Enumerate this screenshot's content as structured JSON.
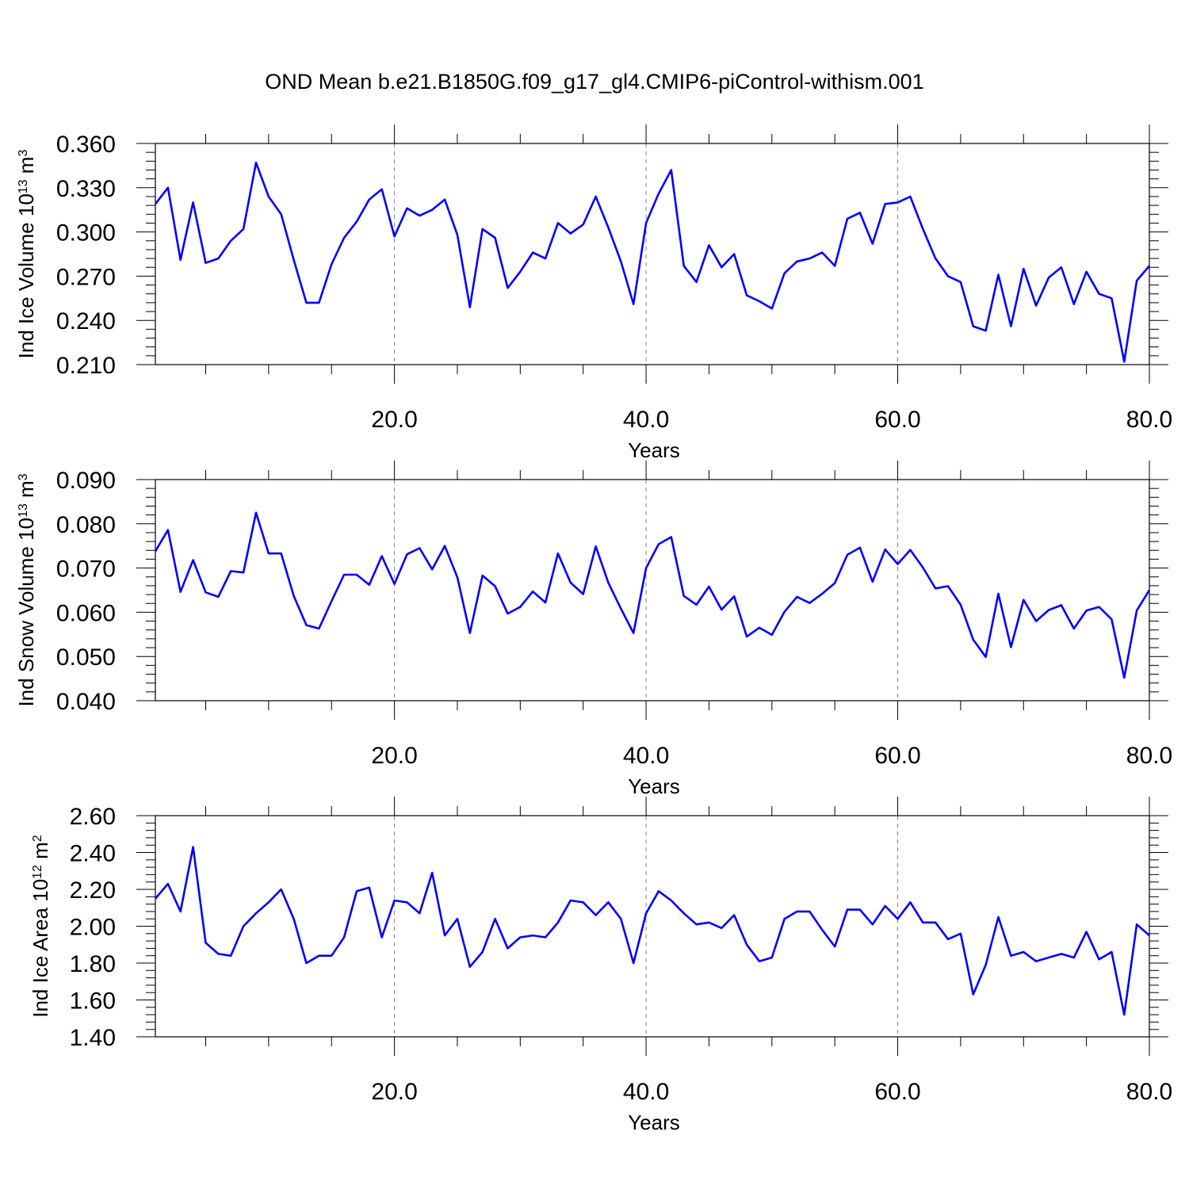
{
  "title": "OND Mean b.e21.B1850G.f09_g17_gl4.CMIP6-piControl-withism.001",
  "colors": {
    "series": "#0000ff",
    "axis": "#000000",
    "grid": "#808080"
  },
  "chart_data": [
    {
      "type": "line",
      "ylabel": "Ind Ice Volume 10",
      "ylabel_exp": "13",
      "ylabel_unit": " m",
      "ylabel_unit_exp": "3",
      "xlabel": "Years",
      "xlim": [
        1,
        80
      ],
      "ylim": [
        0.21,
        0.36
      ],
      "yticks": [
        "0.210",
        "0.240",
        "0.270",
        "0.300",
        "0.330",
        "0.360"
      ],
      "xticks": [
        "20.0",
        "40.0",
        "60.0",
        "80.0"
      ],
      "grid_x": true,
      "series": [
        {
          "values": [
            0.319,
            0.33,
            0.281,
            0.32,
            0.279,
            0.282,
            0.294,
            0.302,
            0.347,
            0.324,
            0.312,
            0.281,
            0.252,
            0.252,
            0.278,
            0.296,
            0.307,
            0.322,
            0.329,
            0.297,
            0.316,
            0.311,
            0.315,
            0.322,
            0.298,
            0.249,
            0.302,
            0.296,
            0.262,
            0.273,
            0.286,
            0.282,
            0.306,
            0.299,
            0.305,
            0.324,
            0.303,
            0.28,
            0.251,
            0.306,
            0.326,
            0.342,
            0.277,
            0.266,
            0.291,
            0.276,
            0.285,
            0.257,
            0.253,
            0.248,
            0.272,
            0.28,
            0.282,
            0.286,
            0.277,
            0.309,
            0.313,
            0.292,
            0.319,
            0.32,
            0.324,
            0.302,
            0.282,
            0.27,
            0.266,
            0.236,
            0.233,
            0.271,
            0.236,
            0.275,
            0.25,
            0.269,
            0.276,
            0.251,
            0.273,
            0.258,
            0.255,
            0.212,
            0.267,
            0.277
          ]
        }
      ]
    },
    {
      "type": "line",
      "ylabel": "Ind Snow Volume 10",
      "ylabel_exp": "13",
      "ylabel_unit": " m",
      "ylabel_unit_exp": "3",
      "xlabel": "Years",
      "xlim": [
        1,
        80
      ],
      "ylim": [
        0.04,
        0.09
      ],
      "yticks": [
        "0.040",
        "0.050",
        "0.060",
        "0.070",
        "0.080",
        "0.090"
      ],
      "xticks": [
        "20.0",
        "40.0",
        "60.0",
        "80.0"
      ],
      "grid_x": true,
      "series": [
        {
          "values": [
            0.0738,
            0.0786,
            0.0646,
            0.0718,
            0.0645,
            0.0635,
            0.0693,
            0.069,
            0.0825,
            0.0733,
            0.0733,
            0.0637,
            0.0571,
            0.0563,
            0.0625,
            0.0685,
            0.0685,
            0.0662,
            0.0727,
            0.0664,
            0.0731,
            0.0745,
            0.0697,
            0.075,
            0.0679,
            0.0553,
            0.0683,
            0.0659,
            0.0597,
            0.0612,
            0.0647,
            0.0622,
            0.0733,
            0.0667,
            0.0641,
            0.0749,
            0.0667,
            0.0608,
            0.0553,
            0.07,
            0.0754,
            0.077,
            0.0637,
            0.0617,
            0.0658,
            0.0606,
            0.0636,
            0.0545,
            0.0565,
            0.0549,
            0.0601,
            0.0635,
            0.0621,
            0.0642,
            0.0666,
            0.073,
            0.0746,
            0.0669,
            0.0742,
            0.0709,
            0.0741,
            0.0701,
            0.0654,
            0.0659,
            0.0617,
            0.0538,
            0.0499,
            0.0642,
            0.0521,
            0.0628,
            0.058,
            0.0605,
            0.0616,
            0.0563,
            0.0604,
            0.0612,
            0.0584,
            0.0452,
            0.0604,
            0.065
          ]
        }
      ]
    },
    {
      "type": "line",
      "ylabel": "Ind Ice Area 10",
      "ylabel_exp": "12",
      "ylabel_unit": " m",
      "ylabel_unit_exp": "2",
      "xlabel": "Years",
      "xlim": [
        1,
        80
      ],
      "ylim": [
        1.4,
        2.6
      ],
      "yticks": [
        "1.40",
        "1.60",
        "1.80",
        "2.00",
        "2.20",
        "2.40",
        "2.60"
      ],
      "xticks": [
        "20.0",
        "40.0",
        "60.0",
        "80.0"
      ],
      "grid_x": true,
      "series": [
        {
          "values": [
            2.15,
            2.23,
            2.08,
            2.43,
            1.91,
            1.85,
            1.84,
            2.0,
            2.07,
            2.13,
            2.2,
            2.04,
            1.8,
            1.84,
            1.84,
            1.94,
            2.19,
            2.21,
            1.94,
            2.14,
            2.13,
            2.07,
            2.29,
            1.95,
            2.04,
            1.78,
            1.86,
            2.04,
            1.88,
            1.94,
            1.95,
            1.94,
            2.02,
            2.14,
            2.13,
            2.06,
            2.13,
            2.04,
            1.8,
            2.07,
            2.19,
            2.14,
            2.07,
            2.01,
            2.02,
            1.99,
            2.06,
            1.9,
            1.81,
            1.83,
            2.04,
            2.08,
            2.08,
            1.98,
            1.89,
            2.09,
            2.09,
            2.01,
            2.11,
            2.04,
            2.13,
            2.02,
            2.02,
            1.93,
            1.96,
            1.63,
            1.79,
            2.05,
            1.84,
            1.86,
            1.81,
            1.83,
            1.85,
            1.83,
            1.97,
            1.82,
            1.86,
            1.52,
            2.01,
            1.95
          ]
        }
      ]
    }
  ]
}
